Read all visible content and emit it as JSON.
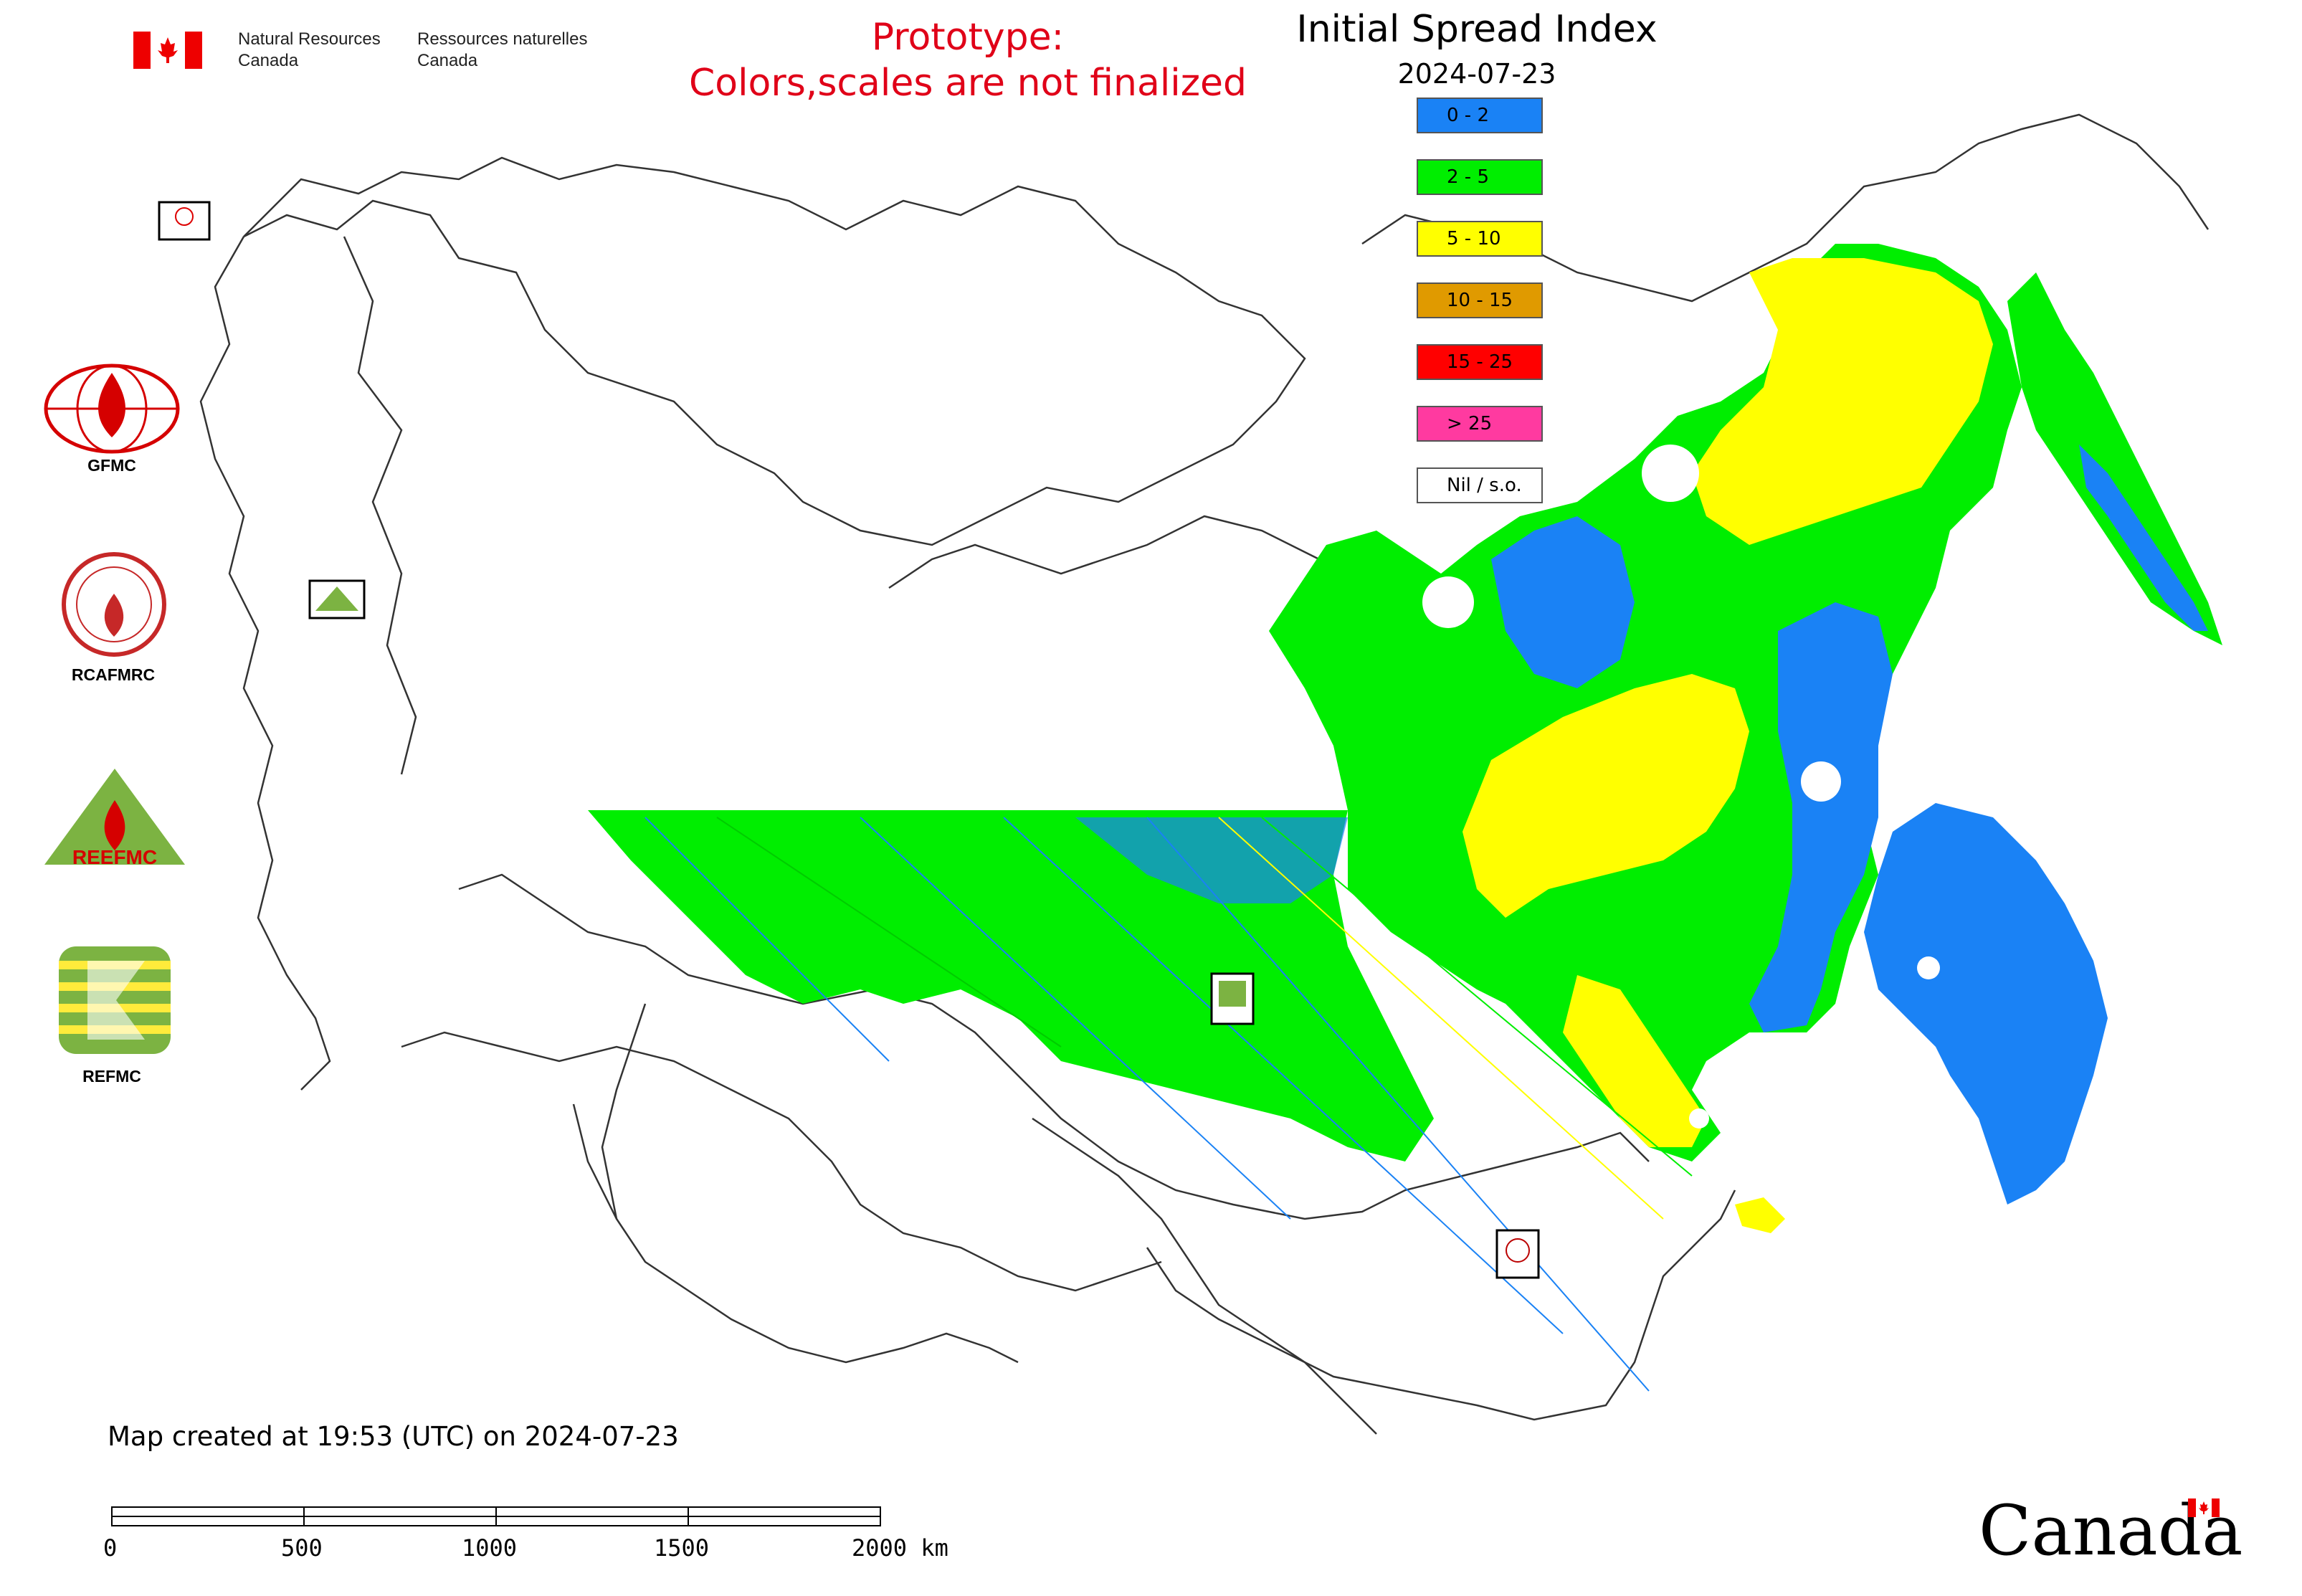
{
  "header": {
    "agency_en_line1": "Natural Resources",
    "agency_en_line2": "Canada",
    "agency_fr_line1": "Ressources naturelles",
    "agency_fr_line2": "Canada",
    "prototype_line1": "Prototype:",
    "prototype_line2": "Colors,scales are not finalized",
    "title": "Initial Spread Index",
    "date": "2024-07-23"
  },
  "legend": [
    {
      "label": "0 - 2",
      "color": "#1a82f5"
    },
    {
      "label": "2 - 5",
      "color": "#00ee00"
    },
    {
      "label": "5 - 10",
      "color": "#ffff00"
    },
    {
      "label": "10 - 15",
      "color": "#e09a00"
    },
    {
      "label": "15 - 25",
      "color": "#ff0000"
    },
    {
      "label": "> 25",
      "color": "#ff3aa0"
    },
    {
      "label": "Nil / s.o.",
      "color": "#ffffff"
    }
  ],
  "partner_logos": [
    {
      "name": "GFMC",
      "icon": "gfmc-logo-icon"
    },
    {
      "name": "RCAFMRC",
      "icon": "rcafmrc-logo-icon"
    },
    {
      "name": "REEFMC",
      "icon": "reefmc-logo-icon"
    },
    {
      "name": "REFMC",
      "icon": "refmc-logo-icon"
    }
  ],
  "map_markers": [
    {
      "label": "GFMC"
    },
    {
      "label": "REEFMC"
    },
    {
      "label": "REFMC"
    },
    {
      "label": "RCAFMRC"
    }
  ],
  "footer": {
    "created_text": "Map created at 19:53 (UTC) on 2024-07-23",
    "scale_ticks": [
      "0",
      "500",
      "1000",
      "1500",
      "2000 km"
    ],
    "wordmark": "Canada"
  }
}
